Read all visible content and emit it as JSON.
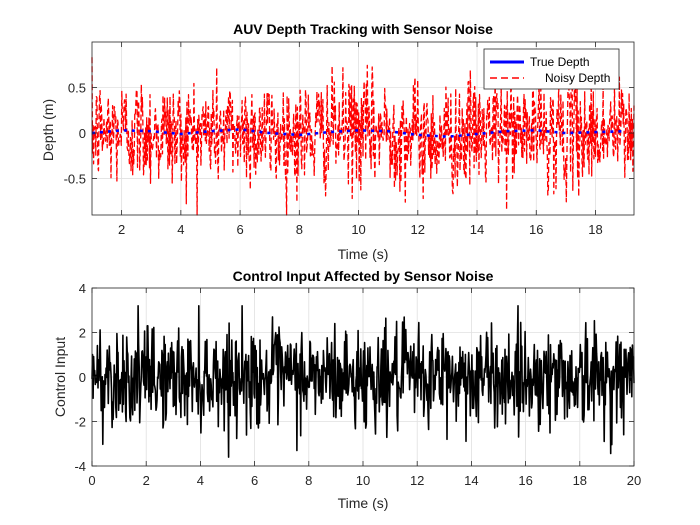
{
  "chart_data": [
    {
      "type": "line",
      "title": "AUV Depth Tracking with Sensor Noise",
      "xlabel": "Time (s)",
      "ylabel": "Depth (m)",
      "xlim": [
        1.0,
        19.3
      ],
      "ylim": [
        -0.9,
        1.0
      ],
      "xticks": [
        "2",
        "4",
        "6",
        "8",
        "10",
        "12",
        "14",
        "16",
        "18"
      ],
      "yticks": [
        "-0.5",
        "0",
        "0.5"
      ],
      "grid": true,
      "legend_placement": "top-right",
      "series": [
        {
          "name": "True Depth",
          "color": "#0000ff",
          "style": "solid",
          "x": [
            1,
            2,
            3,
            4,
            5,
            6,
            7,
            8,
            9,
            10,
            11,
            12,
            13,
            14,
            15,
            16,
            17,
            18,
            19
          ],
          "y": [
            0.0,
            0.03,
            0.02,
            -0.01,
            0.02,
            0.04,
            0.0,
            -0.02,
            0.01,
            0.03,
            0.02,
            -0.02,
            -0.04,
            -0.01,
            0.02,
            0.03,
            0.0,
            0.01,
            0.02
          ]
        },
        {
          "name": "Noisy Depth",
          "color": "#ff0000",
          "style": "dashed",
          "x_range": [
            1.0,
            19.3
          ],
          "noise_sd": 0.3,
          "clip": [
            -0.9,
            1.0
          ]
        }
      ]
    },
    {
      "type": "line",
      "title": "Control Input Affected by Sensor Noise",
      "xlabel": "Time (s)",
      "ylabel": "Control Input",
      "xlim": [
        0,
        20
      ],
      "ylim": [
        -4,
        4
      ],
      "xticks": [
        "0",
        "2",
        "4",
        "6",
        "8",
        "10",
        "12",
        "14",
        "16",
        "18",
        "20"
      ],
      "yticks": [
        "-4",
        "-2",
        "0",
        "2",
        "4"
      ],
      "grid": true,
      "series": [
        {
          "color": "#000000",
          "style": "solid",
          "x_range": [
            0,
            20
          ],
          "noise_sd": 1.1,
          "clip": [
            -3.6,
            3.2
          ]
        }
      ]
    }
  ]
}
